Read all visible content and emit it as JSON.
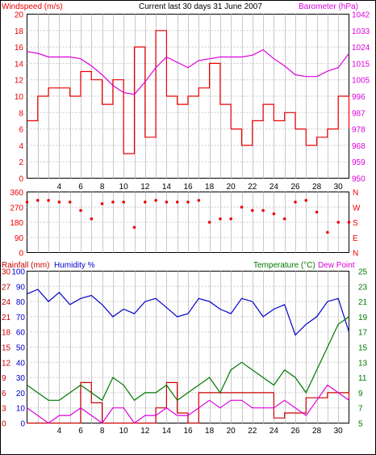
{
  "panel1": {
    "title": "Current last 30 days 31 June 2007",
    "left_label": "Windspeed (m/s)",
    "right_label": "Barometer (hPa)",
    "left_ticks": [
      "0",
      "2",
      "4",
      "6",
      "8",
      "10",
      "12",
      "14",
      "16",
      "18",
      "20"
    ],
    "right_ticks": [
      "950",
      "959",
      "968",
      "978",
      "987",
      "996",
      "1005",
      "1015",
      "1024",
      "1033",
      "1042"
    ]
  },
  "panel2": {
    "left_ticks": [
      "0",
      "90",
      "180",
      "270",
      "360"
    ],
    "right_ticks": [
      "N",
      "E",
      "S",
      "W",
      "N"
    ]
  },
  "panel3": {
    "rain_label": "Rainfall (mm)",
    "hum_label": "Humidity %",
    "temp_label": "Temperature (°C)",
    "dew_label": "Dew Point",
    "rain_ticks": [
      "0",
      "3",
      "6",
      "9",
      "12",
      "15",
      "18",
      "21",
      "24",
      "27",
      "30"
    ],
    "hum_ticks": [
      "0",
      "10",
      "20",
      "30",
      "40",
      "50",
      "60",
      "70",
      "80",
      "90",
      "100"
    ],
    "temp_ticks": [
      "5",
      "7",
      "9",
      "11",
      "13",
      "15",
      "17",
      "19",
      "21",
      "23",
      "25"
    ]
  },
  "x_ticks": [
    "4",
    "6",
    "8",
    "10",
    "12",
    "14",
    "16",
    "18",
    "20",
    "22",
    "24",
    "26",
    "28",
    "30"
  ],
  "colors": {
    "wind": "#ee0000",
    "gust": "#0000cc",
    "barometer": "#dd00dd",
    "direction": "#ee0000",
    "rain": "#cc0000",
    "humidity": "#0000cc",
    "temperature": "#007700",
    "dewpoint": "#dd00dd",
    "grid": "#c8c8c8",
    "frame": "#000000"
  },
  "chart_data": [
    {
      "type": "line",
      "x_unit": "day",
      "xlim": [
        1,
        31
      ],
      "series": [
        {
          "name": "Windspeed (m/s)",
          "axis": "left",
          "ylim": [
            0,
            20
          ],
          "x": [
            1,
            2,
            3,
            4,
            5,
            6,
            7,
            8,
            9,
            10,
            11,
            12,
            13,
            14,
            15,
            16,
            17,
            18,
            19,
            20,
            21,
            22,
            23,
            24,
            25,
            26,
            27,
            28,
            29,
            30,
            31
          ],
          "values": [
            7,
            10,
            11,
            11,
            10,
            13,
            12,
            9,
            12,
            3,
            16,
            5,
            18,
            10,
            9,
            10,
            11,
            14,
            9,
            6,
            4,
            7,
            9,
            7,
            8,
            6,
            4,
            5,
            6,
            10,
            6
          ]
        },
        {
          "name": "Barometer (hPa)",
          "axis": "right",
          "ylim": [
            950,
            1042
          ],
          "x": [
            1,
            2,
            3,
            4,
            5,
            6,
            7,
            8,
            9,
            10,
            11,
            12,
            13,
            14,
            15,
            16,
            17,
            18,
            19,
            20,
            21,
            22,
            23,
            24,
            25,
            26,
            27,
            28,
            29,
            30,
            31
          ],
          "values": [
            1021,
            1020,
            1018,
            1018,
            1018,
            1017,
            1013,
            1008,
            1002,
            998,
            997,
            1004,
            1012,
            1018,
            1015,
            1012,
            1016,
            1017,
            1018,
            1018,
            1018,
            1019,
            1022,
            1017,
            1013,
            1008,
            1007,
            1007,
            1010,
            1012,
            1020
          ]
        }
      ]
    },
    {
      "type": "scatter",
      "x_unit": "day",
      "xlim": [
        1,
        31
      ],
      "ylim": [
        0,
        360
      ],
      "series": [
        {
          "name": "Wind direction",
          "x": [
            1,
            2,
            3,
            4,
            5,
            6,
            7,
            8,
            9,
            10,
            11,
            12,
            13,
            14,
            15,
            16,
            17,
            18,
            19,
            20,
            21,
            22,
            23,
            24,
            25,
            26,
            27,
            28,
            29,
            30,
            31
          ],
          "values": [
            300,
            310,
            310,
            300,
            300,
            250,
            200,
            290,
            300,
            300,
            150,
            300,
            310,
            300,
            300,
            300,
            310,
            180,
            200,
            200,
            270,
            250,
            250,
            230,
            200,
            300,
            310,
            240,
            120,
            180,
            180
          ]
        }
      ]
    },
    {
      "type": "line",
      "x_unit": "day",
      "xlim": [
        1,
        31
      ],
      "series": [
        {
          "name": "Rainfall (mm)",
          "axis": "rain",
          "ylim": [
            0,
            30
          ],
          "x": [
            1,
            2,
            3,
            4,
            5,
            6,
            7,
            8,
            9,
            10,
            11,
            12,
            13,
            14,
            15,
            16,
            17,
            18,
            19,
            20,
            21,
            22,
            23,
            24,
            25,
            26,
            27,
            28,
            29,
            30,
            31
          ],
          "values": [
            0,
            0,
            0,
            0,
            0,
            8,
            4,
            0,
            0,
            0,
            0,
            0,
            3,
            8,
            2,
            0,
            6,
            6,
            6,
            6,
            6,
            6,
            6,
            1,
            2,
            2,
            5,
            5,
            6,
            6,
            5
          ]
        },
        {
          "name": "Humidity %",
          "axis": "humidity",
          "ylim": [
            0,
            100
          ],
          "x": [
            1,
            2,
            3,
            4,
            5,
            6,
            7,
            8,
            9,
            10,
            11,
            12,
            13,
            14,
            15,
            16,
            17,
            18,
            19,
            20,
            21,
            22,
            23,
            24,
            25,
            26,
            27,
            28,
            29,
            30,
            31
          ],
          "values": [
            85,
            88,
            80,
            86,
            78,
            82,
            84,
            78,
            70,
            75,
            72,
            80,
            82,
            76,
            70,
            72,
            82,
            80,
            75,
            72,
            82,
            80,
            70,
            75,
            78,
            58,
            65,
            70,
            80,
            82,
            60
          ]
        },
        {
          "name": "Temperature (°C)",
          "axis": "temperature",
          "ylim": [
            5,
            25
          ],
          "x": [
            1,
            2,
            3,
            4,
            5,
            6,
            7,
            8,
            9,
            10,
            11,
            12,
            13,
            14,
            15,
            16,
            17,
            18,
            19,
            20,
            21,
            22,
            23,
            24,
            25,
            26,
            27,
            28,
            29,
            30,
            31
          ],
          "values": [
            10,
            9,
            8,
            8,
            9,
            10,
            9,
            8,
            11,
            10,
            8,
            9,
            9,
            10,
            8,
            9,
            10,
            11,
            9,
            12,
            13,
            12,
            11,
            10,
            12,
            11,
            9,
            12,
            15,
            18,
            19
          ]
        },
        {
          "name": "Dew Point",
          "axis": "temperature",
          "ylim": [
            5,
            25
          ],
          "x": [
            1,
            2,
            3,
            4,
            5,
            6,
            7,
            8,
            9,
            10,
            11,
            12,
            13,
            14,
            15,
            16,
            17,
            18,
            19,
            20,
            21,
            22,
            23,
            24,
            25,
            26,
            27,
            28,
            29,
            30,
            31
          ],
          "values": [
            7,
            6,
            5,
            6,
            6,
            7,
            6,
            5,
            7,
            7,
            5,
            6,
            6,
            7,
            6,
            6,
            7,
            8,
            7,
            8,
            8,
            7,
            7,
            7,
            8,
            7,
            6,
            8,
            10,
            9,
            8
          ]
        }
      ]
    }
  ]
}
